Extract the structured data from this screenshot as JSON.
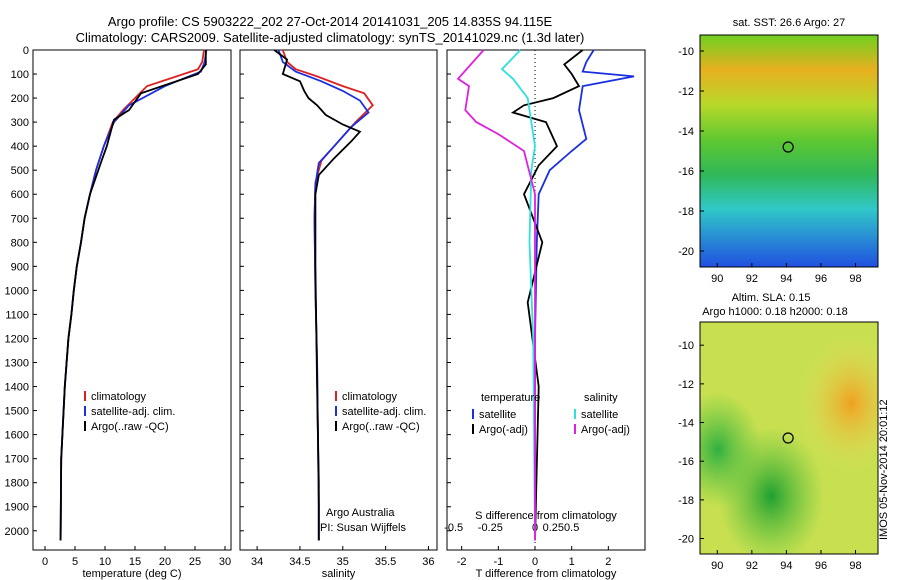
{
  "header": {
    "title_line1": "Argo profile: CS 5903222_202 27-Oct-2014 20141031_205 14.835S 94.115E",
    "title_line2": "Climatology: CARS2009. Satellite-adjusted climatology: synTS_20141029.nc (1.3d later)"
  },
  "footer": {
    "timestamp": "IMOS 05-Nov-2014 20:01:12"
  },
  "colors": {
    "climatology": "#e02020",
    "satellite": "#1a2fe0",
    "argo": "#000000",
    "sal_satellite": "#30e0e0",
    "sal_argo": "#e020e0"
  },
  "chart_data": [
    {
      "type": "line",
      "xlabel": "temperature (deg C)",
      "ylabel": "",
      "xlim": [
        -2,
        31
      ],
      "ylim": [
        2080,
        0
      ],
      "xticks": [
        "0",
        "5",
        "10",
        "15",
        "20",
        "25",
        "30"
      ],
      "yticks": [
        "0",
        "100",
        "200",
        "300",
        "400",
        "500",
        "600",
        "700",
        "800",
        "900",
        "1000",
        "1100",
        "1200",
        "1300",
        "1400",
        "1500",
        "1600",
        "1700",
        "1800",
        "1900",
        "2000"
      ],
      "legend": [
        "climatology",
        "satellite-adj. clim.",
        "Argo(..raw -QC)"
      ],
      "series": [
        {
          "name": "climatology",
          "x": [
            26.5,
            26.2,
            25.5,
            17,
            13,
            11.3,
            9.8,
            8.5,
            7.5,
            6.6,
            6.0,
            5.3,
            4.8,
            4.4,
            3.9,
            3.6,
            3.3,
            3.1,
            2.9,
            2.7,
            2.6
          ],
          "y": [
            0,
            50,
            80,
            150,
            250,
            300,
            400,
            500,
            600,
            700,
            800,
            900,
            1000,
            1100,
            1200,
            1300,
            1400,
            1500,
            1600,
            1700,
            2040
          ]
        },
        {
          "name": "satellite-adj. clim.",
          "x": [
            26.9,
            26.6,
            26.0,
            20,
            14,
            11.5,
            9.8,
            8.5,
            7.5,
            6.6,
            6.0,
            5.3,
            4.8,
            4.4,
            3.9,
            3.6,
            3.3,
            3.1,
            2.9,
            2.7,
            2.6
          ],
          "y": [
            0,
            50,
            90,
            150,
            230,
            300,
            400,
            500,
            600,
            700,
            800,
            900,
            1000,
            1100,
            1200,
            1300,
            1400,
            1500,
            1600,
            1700,
            2040
          ]
        },
        {
          "name": "Argo(..raw -QC)",
          "x": [
            26.8,
            26.8,
            25.5,
            16,
            14,
            11.5,
            10.3,
            9.3,
            7.5,
            6.6,
            6.0,
            5.3,
            4.8,
            4.4,
            3.9,
            3.6,
            3.3,
            3.1,
            2.9,
            2.7,
            2.6
          ],
          "y": [
            0,
            60,
            100,
            180,
            250,
            290,
            400,
            470,
            600,
            700,
            800,
            900,
            1000,
            1100,
            1200,
            1300,
            1400,
            1500,
            1600,
            1700,
            2040
          ]
        }
      ]
    },
    {
      "type": "line",
      "xlabel": "salinity",
      "xlim": [
        33.8,
        36.1
      ],
      "ylim": [
        2080,
        0
      ],
      "xticks": [
        "34",
        "34.5",
        "35",
        "35.5",
        "36"
      ],
      "legend": [
        "climatology",
        "satellite-adj. clim.",
        "Argo(..raw -QC)"
      ],
      "annotation": [
        "Argo Australia",
        "PI: Susan Wijffels"
      ],
      "series": [
        {
          "name": "climatology",
          "x": [
            34.3,
            34.35,
            34.45,
            34.7,
            35.0,
            35.25,
            35.35,
            35.15,
            34.95,
            34.75,
            34.68,
            34.67,
            34.68,
            34.7,
            34.71,
            34.72,
            34.72
          ],
          "y": [
            0,
            50,
            80,
            110,
            150,
            180,
            230,
            300,
            380,
            460,
            550,
            700,
            1000,
            1300,
            1600,
            1900,
            2040
          ]
        },
        {
          "name": "satellite-adj. clim.",
          "x": [
            34.25,
            34.3,
            34.45,
            34.75,
            35.0,
            35.2,
            35.3,
            35.1,
            34.9,
            34.72,
            34.68,
            34.67,
            34.68,
            34.7,
            34.71,
            34.72,
            34.72
          ],
          "y": [
            0,
            50,
            90,
            130,
            170,
            210,
            260,
            320,
            400,
            470,
            560,
            700,
            1000,
            1300,
            1600,
            1900,
            2040
          ]
        },
        {
          "name": "Argo(..raw -QC)",
          "x": [
            34.2,
            34.35,
            34.3,
            34.5,
            34.55,
            34.6,
            34.7,
            34.8,
            35.0,
            35.2,
            35.1,
            34.9,
            34.72,
            34.68,
            34.68,
            34.7,
            34.72,
            34.72
          ],
          "y": [
            0,
            40,
            100,
            130,
            170,
            200,
            230,
            270,
            310,
            340,
            380,
            450,
            520,
            600,
            900,
            1400,
            1800,
            2040
          ]
        }
      ]
    },
    {
      "type": "line",
      "xlabel": "T difference from climatology",
      "xlabel2": "S difference from climatology",
      "xlim": [
        -2.4,
        3.0
      ],
      "ylim": [
        2080,
        0
      ],
      "xticks": [
        "-2",
        "-1",
        "0",
        "1",
        "2"
      ],
      "xticks2": [
        "-0.5",
        "-0.25",
        "0",
        "0.25",
        "0.5"
      ],
      "legend_left_title": "temperature",
      "legend_right_title": "salinity",
      "legend": [
        "satellite",
        "Argo(-adj)",
        "satellite",
        "Argo(-adj)"
      ],
      "series": [
        {
          "name": "satellite",
          "x": [
            1.6,
            1.4,
            1.3,
            2.7,
            1.3,
            1.2,
            1.4,
            1.0,
            0.4,
            0.1,
            0.05,
            0.0,
            0.0,
            0.0
          ],
          "y": [
            0,
            50,
            90,
            110,
            150,
            250,
            370,
            420,
            500,
            600,
            800,
            1200,
            1600,
            2040
          ]
        },
        {
          "name": "Argo(-adj)",
          "x": [
            1.3,
            0.8,
            1.0,
            1.2,
            0.5,
            -0.3,
            -0.6,
            0.3,
            0.6,
            0.1,
            -0.3,
            0.2,
            -0.2,
            0.1,
            0.0
          ],
          "y": [
            0,
            60,
            100,
            150,
            200,
            230,
            260,
            300,
            400,
            480,
            600,
            800,
            1050,
            1400,
            2040
          ]
        },
        {
          "name": "sal satellite",
          "x": [
            -0.4,
            -0.9,
            -0.6,
            -0.2,
            -0.1,
            0.0,
            -0.1,
            -0.15,
            -0.05,
            0.0
          ],
          "y": [
            0,
            80,
            120,
            200,
            300,
            400,
            500,
            800,
            1200,
            2040
          ]
        },
        {
          "name": "sal Argo(-adj)",
          "x": [
            -1.4,
            -2.1,
            -1.8,
            -1.9,
            -1.6,
            -1.0,
            -0.3,
            0.0,
            0.0
          ],
          "y": [
            0,
            120,
            150,
            250,
            300,
            350,
            420,
            600,
            2040
          ]
        }
      ]
    },
    {
      "type": "heatmap",
      "title": "sat. SST: 26.6 Argo: 27",
      "xlim": [
        89,
        99.3
      ],
      "ylim": [
        -20.8,
        -9.2
      ],
      "xticks": [
        "90",
        "92",
        "94",
        "96",
        "98"
      ],
      "yticks": [
        "-10",
        "-12",
        "-14",
        "-16",
        "-18",
        "-20"
      ],
      "marker": {
        "x": 94.1,
        "y": -14.8
      }
    },
    {
      "type": "heatmap",
      "title": "Altim. SLA: 0.15",
      "subtitle": "Argo h1000: 0.18 h2000: 0.18",
      "xlim": [
        89,
        99.3
      ],
      "ylim": [
        -20.8,
        -8.8
      ],
      "xticks": [
        "90",
        "92",
        "94",
        "96",
        "98"
      ],
      "yticks": [
        "-10",
        "-12",
        "-14",
        "-16",
        "-18",
        "-20"
      ],
      "marker": {
        "x": 94.1,
        "y": -14.8
      }
    }
  ]
}
